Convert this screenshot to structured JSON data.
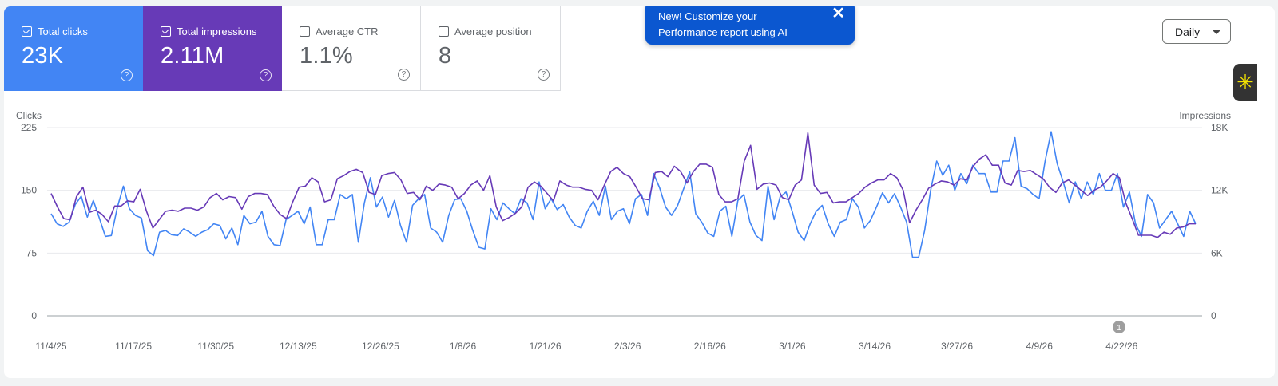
{
  "metrics": [
    {
      "label": "Total clicks",
      "value": "23K",
      "checked": true
    },
    {
      "label": "Total impressions",
      "value": "2.11M",
      "checked": true
    },
    {
      "label": "Average CTR",
      "value": "1.1%",
      "checked": false
    },
    {
      "label": "Average position",
      "value": "8",
      "checked": false
    }
  ],
  "toast": {
    "line1": "New! Customize your",
    "line2": "Performance report using AI",
    "close": "✕"
  },
  "granularity": {
    "label": "Daily"
  },
  "annotation": {
    "label": "1"
  },
  "colors": {
    "clicks": "#4285f4",
    "impressions": "#673ab7"
  },
  "chart_data": {
    "type": "line",
    "y_left": {
      "label": "Clicks",
      "range": [
        0,
        225
      ],
      "ticks": [
        "0",
        "75",
        "150",
        "225"
      ]
    },
    "y_right": {
      "label": "Impressions",
      "range": [
        0,
        18000
      ],
      "ticks": [
        "0",
        "6K",
        "12K",
        "18K"
      ]
    },
    "x_ticks": [
      "11/4/25",
      "11/17/25",
      "11/30/25",
      "12/13/25",
      "12/26/25",
      "1/8/26",
      "1/21/26",
      "2/3/26",
      "2/16/26",
      "3/1/26",
      "3/14/26",
      "3/27/26",
      "4/9/26",
      "4/22/26"
    ],
    "x_range": [
      "11/4/25",
      "5/3/26"
    ],
    "grid": true,
    "series": [
      {
        "name": "Clicks",
        "axis": "left",
        "values": [
          122,
          110,
          107,
          112,
          133,
          143,
          118,
          138,
          117,
          95,
          96,
          130,
          155,
          128,
          120,
          117,
          78,
          72,
          100,
          102,
          97,
          96,
          104,
          100,
          95,
          100,
          103,
          110,
          108,
          92,
          105,
          85,
          120,
          110,
          112,
          125,
          95,
          85,
          84,
          115,
          120,
          125,
          110,
          130,
          85,
          85,
          115,
          115,
          145,
          140,
          145,
          88,
          135,
          165,
          130,
          142,
          118,
          138,
          108,
          88,
          132,
          140,
          145,
          105,
          100,
          88,
          120,
          139,
          140,
          125,
          102,
          82,
          80,
          128,
          115,
          135,
          128,
          122,
          140,
          135,
          115,
          160,
          128,
          140,
          127,
          133,
          118,
          108,
          105,
          125,
          137,
          120,
          155,
          115,
          125,
          128,
          110,
          140,
          145,
          120,
          170,
          153,
          130,
          120,
          132,
          152,
          172,
          122,
          112,
          99,
          95,
          125,
          131,
          95,
          138,
          145,
          112,
          96,
          90,
          155,
          115,
          142,
          148,
          125,
          100,
          90,
          110,
          125,
          132,
          110,
          95,
          112,
          115,
          140,
          130,
          105,
          114,
          130,
          147,
          135,
          146,
          130,
          112,
          70,
          70,
          102,
          150,
          185,
          168,
          180,
          150,
          170,
          158,
          180,
          170,
          170,
          148,
          148,
          185,
          185,
          213,
          155,
          152,
          145,
          140,
          185,
          220,
          182,
          160,
          135,
          160,
          140,
          160,
          145,
          170,
          150,
          150,
          170,
          130,
          148,
          110,
          95,
          145,
          135,
          105,
          115,
          125,
          110,
          95,
          125,
          110
        ]
      },
      {
        "name": "Impressions",
        "axis": "right",
        "values": [
          11700,
          10400,
          9300,
          9200,
          11400,
          12300,
          9900,
          10100,
          9700,
          9000,
          10500,
          10500,
          11000,
          10900,
          12100,
          10000,
          8400,
          9200,
          10000,
          10100,
          10000,
          10300,
          10300,
          10100,
          10400,
          11300,
          11700,
          11100,
          11400,
          11300,
          10200,
          11400,
          11700,
          11700,
          11600,
          10500,
          9700,
          9300,
          10900,
          12300,
          12400,
          13200,
          12800,
          10900,
          11100,
          13100,
          13400,
          13800,
          14000,
          13700,
          11800,
          11600,
          13400,
          13600,
          13700,
          13000,
          11700,
          11800,
          11100,
          12400,
          12000,
          12600,
          12500,
          12300,
          11200,
          11700,
          12500,
          12900,
          12000,
          13400,
          10400,
          9100,
          9400,
          9800,
          10400,
          12300,
          12800,
          12400,
          11700,
          11000,
          12900,
          12500,
          12300,
          12300,
          12100,
          12000,
          11100,
          12500,
          13800,
          14200,
          13600,
          13300,
          12300,
          11200,
          11100,
          13700,
          13800,
          13300,
          14300,
          13800,
          12700,
          13800,
          14500,
          14500,
          14200,
          11600,
          10900,
          10900,
          11200,
          14800,
          16300,
          12100,
          12600,
          12700,
          12500,
          11300,
          11100,
          12500,
          13000,
          17500,
          12500,
          11700,
          11800,
          10800,
          10900,
          10900,
          11300,
          11700,
          12300,
          12700,
          13000,
          13000,
          13600,
          13200,
          12000,
          8900,
          10100,
          11100,
          12200,
          12600,
          12900,
          12800,
          12500,
          13100,
          13000,
          14300,
          15000,
          15400,
          14400,
          14400,
          12700,
          12500,
          13900,
          13800,
          13900,
          13500,
          13100,
          12300,
          11800,
          12700,
          13000,
          12500,
          12000,
          11500,
          12000,
          12300,
          12900,
          13600,
          13200,
          10800,
          9300,
          7700,
          7700,
          7700,
          7500,
          8000,
          7800,
          8400,
          8500,
          8800,
          8800
        ]
      }
    ]
  }
}
